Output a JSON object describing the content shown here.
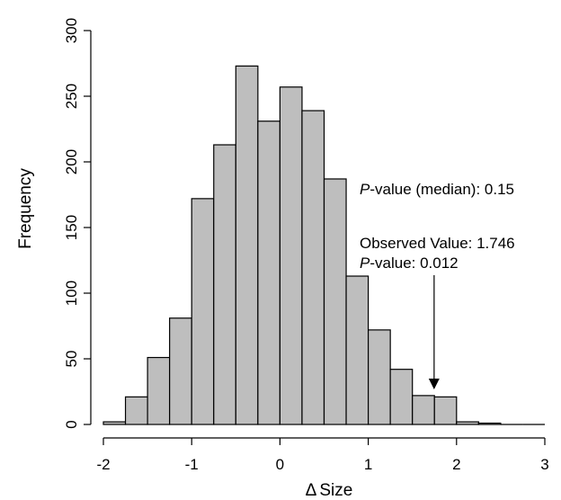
{
  "chart_data": {
    "type": "bar",
    "subtype": "histogram",
    "title": "",
    "xlabel_symbol": "Δ",
    "xlabel": "Size",
    "ylabel": "Frequency",
    "xlim": [
      -2,
      3
    ],
    "ylim": [
      0,
      300
    ],
    "bin_width": 0.25,
    "x_ticks": [
      -2,
      -1,
      0,
      1,
      2,
      3
    ],
    "y_ticks": [
      0,
      50,
      100,
      150,
      200,
      250,
      300
    ],
    "bins": [
      {
        "start": -2.0,
        "end": -1.75,
        "count": 2
      },
      {
        "start": -1.75,
        "end": -1.5,
        "count": 21
      },
      {
        "start": -1.5,
        "end": -1.25,
        "count": 51
      },
      {
        "start": -1.25,
        "end": -1.0,
        "count": 81
      },
      {
        "start": -1.0,
        "end": -0.75,
        "count": 172
      },
      {
        "start": -0.75,
        "end": -0.5,
        "count": 213
      },
      {
        "start": -0.5,
        "end": -0.25,
        "count": 273
      },
      {
        "start": -0.25,
        "end": 0.0,
        "count": 231
      },
      {
        "start": 0.0,
        "end": 0.25,
        "count": 257
      },
      {
        "start": 0.25,
        "end": 0.5,
        "count": 239
      },
      {
        "start": 0.5,
        "end": 0.75,
        "count": 187
      },
      {
        "start": 0.75,
        "end": 1.0,
        "count": 113
      },
      {
        "start": 1.0,
        "end": 1.25,
        "count": 72
      },
      {
        "start": 1.25,
        "end": 1.5,
        "count": 42
      },
      {
        "start": 1.5,
        "end": 1.75,
        "count": 22
      },
      {
        "start": 1.75,
        "end": 2.0,
        "count": 21
      },
      {
        "start": 2.0,
        "end": 2.25,
        "count": 2
      },
      {
        "start": 2.25,
        "end": 2.5,
        "count": 1
      },
      {
        "start": 2.5,
        "end": 2.75,
        "count": 0
      },
      {
        "start": 2.75,
        "end": 3.0,
        "count": 0
      }
    ],
    "bar_color": "#bebebe",
    "grid": false,
    "legend": "none",
    "annotations": {
      "median_p": {
        "italic": "P",
        "text": "-value (median): 0.15"
      },
      "observed": {
        "text": "Observed Value: 1.746",
        "value": 1.746
      },
      "observed_p": {
        "italic": "P",
        "text": "-value: 0.012"
      },
      "arrow_points_to_x": 1.746
    }
  }
}
